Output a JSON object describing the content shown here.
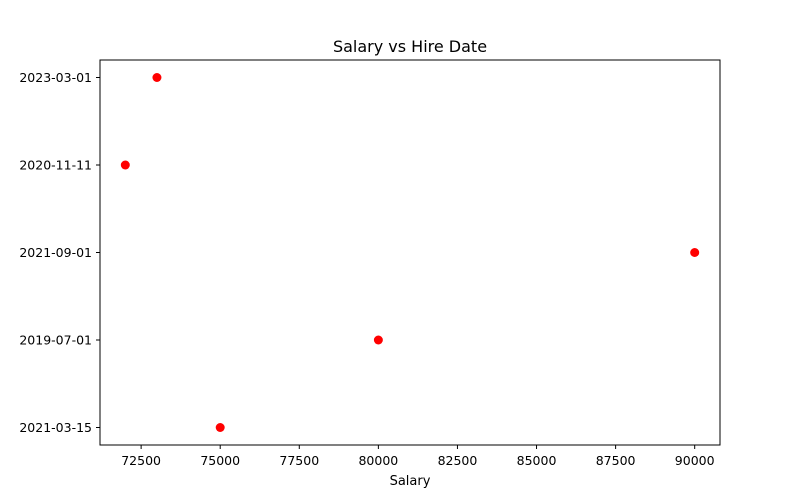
{
  "chart_data": {
    "type": "scatter",
    "title": "Salary vs Hire Date",
    "xlabel": "Salary",
    "ylabel": "",
    "xlim": [
      71200,
      90800
    ],
    "x_ticks": [
      72500,
      75000,
      77500,
      80000,
      82500,
      85000,
      87500,
      90000
    ],
    "y_categories": [
      "2021-03-15",
      "2019-07-01",
      "2021-09-01",
      "2020-11-11",
      "2023-03-01"
    ],
    "points": [
      {
        "x": 75000,
        "y": "2021-03-15"
      },
      {
        "x": 80000,
        "y": "2019-07-01"
      },
      {
        "x": 90000,
        "y": "2021-09-01"
      },
      {
        "x": 72000,
        "y": "2020-11-11"
      },
      {
        "x": 73000,
        "y": "2023-03-01"
      }
    ],
    "marker_color": "#ff0000",
    "grid": false,
    "legend": "none"
  }
}
